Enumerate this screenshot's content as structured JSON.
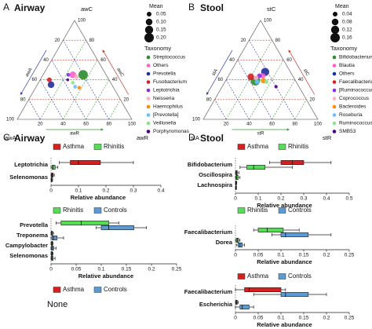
{
  "panels": [
    {
      "letter": "A",
      "title": "Airway"
    },
    {
      "letter": "B",
      "title": "Stool"
    },
    {
      "letter": "C",
      "title": "Airway"
    },
    {
      "letter": "D",
      "title": "Stool"
    }
  ],
  "chart_data": [
    {
      "type": "ternary",
      "axis_labels": {
        "a": "awA",
        "r": "awR",
        "c": "awC"
      },
      "ticks": [
        20,
        40,
        60,
        80,
        100
      ],
      "size_title": "Mean",
      "sizes": [
        0.05,
        {
          "value": 0.1,
          "label": "0.10"
        },
        0.15,
        {
          "value": 0.2,
          "label": "0.20"
        }
      ],
      "legend_title": "Taxonomy",
      "series": [
        {
          "name": "Streptococcus",
          "color": "#2e8b2e",
          "a": 0.2,
          "r": 0.35,
          "c": 0.45,
          "mean": 0.2
        },
        {
          "name": "Others",
          "color": "#ff5fc8",
          "a": 0.29,
          "r": 0.26,
          "c": 0.45,
          "mean": 0.1
        },
        {
          "name": "Prevotella",
          "color": "#1f2f9f",
          "a": 0.53,
          "r": 0.12,
          "c": 0.35,
          "mean": 0.1
        },
        {
          "name": "Fusobacterium",
          "color": "#d42020",
          "a": 0.52,
          "r": 0.08,
          "c": 0.4,
          "mean": 0.05
        },
        {
          "name": "Leptotrichia",
          "color": "#8a2be2",
          "a": 0.33,
          "r": 0.22,
          "c": 0.45,
          "mean": 0.03
        },
        {
          "name": "Neisseria",
          "color": "#ffb0c8",
          "a": 0.27,
          "r": 0.3,
          "c": 0.43,
          "mean": 0.05
        },
        {
          "name": "Haemophilus",
          "color": "#ff8c00",
          "a": 0.3,
          "r": 0.38,
          "c": 0.32,
          "mean": 0.03
        },
        {
          "name": "[Prevotella]",
          "color": "#66c2ff",
          "a": 0.33,
          "r": 0.34,
          "c": 0.33,
          "mean": 0.03
        },
        {
          "name": "Veillonella",
          "color": "#90e090",
          "a": 0.33,
          "r": 0.3,
          "c": 0.37,
          "mean": 0.03
        },
        {
          "name": "Porphyromonas",
          "color": "#4b0082",
          "a": 0.36,
          "r": 0.24,
          "c": 0.4,
          "mean": 0.02
        }
      ]
    },
    {
      "type": "ternary",
      "axis_labels": {
        "a": "stA",
        "r": "stR",
        "c": "stC"
      },
      "ticks": [
        20,
        40,
        60,
        80,
        100
      ],
      "size_title": "Mean",
      "sizes": [
        0.04,
        0.08,
        0.12,
        0.16
      ],
      "legend_title": "Taxonomy",
      "series": [
        {
          "name": "Bifidobacterium",
          "color": "#2e8b2e",
          "a": 0.35,
          "r": 0.26,
          "c": 0.39,
          "mean": 0.16
        },
        {
          "name": "Blautia",
          "color": "#ff5fc8",
          "a": 0.26,
          "r": 0.3,
          "c": 0.44,
          "mean": 0.05
        },
        {
          "name": "Others",
          "color": "#1f2f9f",
          "a": 0.22,
          "r": 0.3,
          "c": 0.48,
          "mean": 0.12
        },
        {
          "name": "Faecalibacterium",
          "color": "#d42020",
          "a": 0.37,
          "r": 0.2,
          "c": 0.43,
          "mean": 0.08
        },
        {
          "name": "[Ruminococcus]",
          "color": "#8a2be2",
          "a": 0.29,
          "r": 0.27,
          "c": 0.44,
          "mean": 0.04
        },
        {
          "name": "Coprococcus",
          "color": "#ffb0c8",
          "a": 0.33,
          "r": 0.25,
          "c": 0.42,
          "mean": 0.04
        },
        {
          "name": "Bacteroides",
          "color": "#ff8c00",
          "a": 0.28,
          "r": 0.33,
          "c": 0.39,
          "mean": 0.05
        },
        {
          "name": "Roseburia",
          "color": "#66c2ff",
          "a": 0.34,
          "r": 0.28,
          "c": 0.38,
          "mean": 0.04
        },
        {
          "name": "Ruminococcus",
          "color": "#90e090",
          "a": 0.26,
          "r": 0.36,
          "c": 0.38,
          "mean": 0.03
        },
        {
          "name": "SMB53",
          "color": "#4b0082",
          "a": 0.2,
          "r": 0.47,
          "c": 0.33,
          "mean": 0.02
        }
      ]
    },
    {
      "type": "box",
      "categories": [
        "Leptotrichia",
        "Selenomonas"
      ],
      "xlim": [
        0,
        0.4
      ],
      "xticks": [
        0,
        0.1,
        0.2,
        0.3,
        0.4
      ],
      "xlabel": "Relative abundance",
      "series": [
        {
          "name": "Asthma",
          "color": "#d42020",
          "boxes": [
            {
              "min": 0.03,
              "q1": 0.07,
              "median": 0.1,
              "q3": 0.18,
              "max": 0.3
            },
            {
              "min": 0,
              "q1": 0.002,
              "median": 0.004,
              "q3": 0.008,
              "max": 0.012
            }
          ]
        },
        {
          "name": "Rhinitis",
          "color": "#55dd55",
          "boxes": [
            {
              "min": 0,
              "q1": 0.004,
              "median": 0.008,
              "q3": 0.015,
              "max": 0.025
            },
            {
              "min": 0,
              "q1": 0.001,
              "median": 0.002,
              "q3": 0.004,
              "max": 0.006
            }
          ]
        }
      ]
    },
    {
      "type": "box",
      "categories": [
        "Prevotella",
        "Treponema",
        "Campylobacter",
        "Selenomonas"
      ],
      "xlim": [
        0,
        0.25
      ],
      "xticks": [
        0,
        0.05,
        0.1,
        0.15,
        0.2,
        0.25
      ],
      "xlabel": "Relative abundance",
      "series": [
        {
          "name": "Rhinitis",
          "color": "#55dd55",
          "boxes": [
            {
              "min": 0.01,
              "q1": 0.02,
              "median": 0.06,
              "q3": 0.115,
              "max": 0.135
            },
            {
              "min": 0,
              "q1": 0.001,
              "median": 0.002,
              "q3": 0.003,
              "max": 0.005
            },
            {
              "min": 0,
              "q1": 0.001,
              "median": 0.002,
              "q3": 0.003,
              "max": 0.004
            },
            {
              "min": 0,
              "q1": 0.001,
              "median": 0.002,
              "q3": 0.003,
              "max": 0.004
            }
          ]
        },
        {
          "name": "Controls",
          "color": "#5b9bd5",
          "boxes": [
            {
              "min": 0.09,
              "q1": 0.1,
              "median": 0.115,
              "q3": 0.165,
              "max": 0.19
            },
            {
              "min": 0,
              "q1": 0.002,
              "median": 0.005,
              "q3": 0.012,
              "max": 0.025
            },
            {
              "min": 0,
              "q1": 0.001,
              "median": 0.003,
              "q3": 0.005,
              "max": 0.01
            },
            {
              "min": 0,
              "q1": 0.001,
              "median": 0.002,
              "q3": 0.004,
              "max": 0.008
            }
          ]
        }
      ]
    },
    {
      "type": "box",
      "categories": [],
      "annotation": "None",
      "series": [
        {
          "name": "Asthma",
          "color": "#d42020",
          "boxes": []
        },
        {
          "name": "Controls",
          "color": "#5b9bd5",
          "boxes": []
        }
      ]
    },
    {
      "type": "box",
      "categories": [
        "Bifidobacterium",
        "Oscillospira",
        "Lachnospira"
      ],
      "xlim": [
        0,
        0.5
      ],
      "xticks": [
        0,
        0.1,
        0.2,
        0.3,
        0.4,
        0.5
      ],
      "xlabel": "Relative abundance",
      "series": [
        {
          "name": "Asthma",
          "color": "#d42020",
          "boxes": [
            {
              "min": 0.15,
              "q1": 0.2,
              "median": 0.25,
              "q3": 0.3,
              "max": 0.42
            },
            {
              "min": 0,
              "q1": 0.002,
              "median": 0.004,
              "q3": 0.008,
              "max": 0.015
            },
            {
              "min": 0,
              "q1": 0.001,
              "median": 0.002,
              "q3": 0.004,
              "max": 0.006
            }
          ]
        },
        {
          "name": "Rhinitis",
          "color": "#55dd55",
          "boxes": [
            {
              "min": 0.02,
              "q1": 0.05,
              "median": 0.08,
              "q3": 0.13,
              "max": 0.25
            },
            {
              "min": 0,
              "q1": 0.003,
              "median": 0.006,
              "q3": 0.012,
              "max": 0.02
            },
            {
              "min": 0,
              "q1": 0.001,
              "median": 0.002,
              "q3": 0.003,
              "max": 0.005
            }
          ]
        }
      ]
    },
    {
      "type": "box",
      "categories": [
        "Faecalibacterium",
        "Dorea"
      ],
      "xlim": [
        0,
        0.25
      ],
      "xticks": [
        0,
        0.05,
        0.1,
        0.15,
        0.2,
        0.25
      ],
      "xlabel": "Relative abundance",
      "series": [
        {
          "name": "Rhinitis",
          "color": "#55dd55",
          "boxes": [
            {
              "min": 0.04,
              "q1": 0.05,
              "median": 0.07,
              "q3": 0.105,
              "max": 0.14
            },
            {
              "min": 0,
              "q1": 0.002,
              "median": 0.004,
              "q3": 0.007,
              "max": 0.01
            }
          ]
        },
        {
          "name": "Controls",
          "color": "#5b9bd5",
          "boxes": [
            {
              "min": 0.08,
              "q1": 0.1,
              "median": 0.11,
              "q3": 0.16,
              "max": 0.21
            },
            {
              "min": 0.002,
              "q1": 0.006,
              "median": 0.01,
              "q3": 0.015,
              "max": 0.02
            }
          ]
        }
      ]
    },
    {
      "type": "box",
      "categories": [
        "Faecalibacterium",
        "Escherichia"
      ],
      "xlim": [
        0,
        0.25
      ],
      "xticks": [
        0,
        0.05,
        0.1,
        0.15,
        0.2,
        0.25
      ],
      "xlabel": "Relative abundance",
      "series": [
        {
          "name": "Asthma",
          "color": "#d42020",
          "boxes": [
            {
              "min": 0,
              "q1": 0.02,
              "median": 0.03,
              "q3": 0.1,
              "max": 0.11
            },
            {
              "min": 0,
              "q1": 0.001,
              "median": 0.002,
              "q3": 0.004,
              "max": 0.006
            }
          ]
        },
        {
          "name": "Controls",
          "color": "#5b9bd5",
          "boxes": [
            {
              "min": 0.04,
              "q1": 0.1,
              "median": 0.11,
              "q3": 0.16,
              "max": 0.2
            },
            {
              "min": 0,
              "q1": 0.01,
              "median": 0.015,
              "q3": 0.03,
              "max": 0.04
            }
          ]
        }
      ]
    }
  ]
}
